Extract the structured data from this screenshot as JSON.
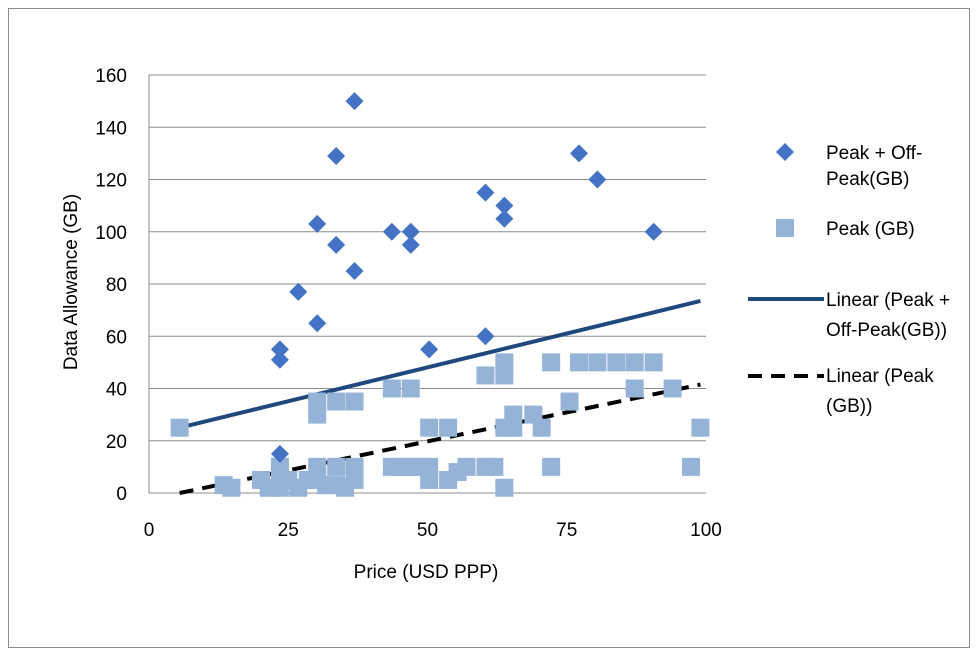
{
  "chart_data": {
    "type": "scatter",
    "title": "",
    "xlabel": "Price (USD PPP)",
    "ylabel": "Data Allowance (GB)",
    "xlim": [
      0,
      100
    ],
    "ylim": [
      0,
      160
    ],
    "x_ticks": [
      "0",
      "25",
      "50",
      "75",
      "100"
    ],
    "y_ticks": [
      "0",
      "20",
      "40",
      "60",
      "80",
      "100",
      "120",
      "140",
      "160"
    ],
    "grid": "horizontal",
    "legend_position": "right",
    "series": [
      {
        "name": "Peak + Off-Peak(GB)",
        "legend_lines": [
          "Peak + Off-",
          "Peak(GB)"
        ],
        "marker": "diamond",
        "color": "#4472C4",
        "points": [
          [
            23.5,
            55
          ],
          [
            23.5,
            51
          ],
          [
            23.5,
            15
          ],
          [
            26.8,
            77
          ],
          [
            30.2,
            103
          ],
          [
            30.2,
            65
          ],
          [
            33.6,
            129
          ],
          [
            33.6,
            95
          ],
          [
            36.9,
            150
          ],
          [
            36.9,
            85
          ],
          [
            43.6,
            100
          ],
          [
            47,
            100
          ],
          [
            47,
            95
          ],
          [
            50.3,
            55
          ],
          [
            60.4,
            115
          ],
          [
            60.4,
            60
          ],
          [
            63.8,
            110
          ],
          [
            63.8,
            105
          ],
          [
            77.2,
            130
          ],
          [
            80.5,
            120
          ],
          [
            90.6,
            100
          ]
        ]
      },
      {
        "name": "Peak (GB)",
        "marker": "square",
        "color": "#95B3D7",
        "points": [
          [
            5.5,
            25
          ],
          [
            13.4,
            3
          ],
          [
            14.8,
            2
          ],
          [
            20.1,
            5
          ],
          [
            21.5,
            2
          ],
          [
            23.5,
            10
          ],
          [
            23.5,
            7
          ],
          [
            23.5,
            2
          ],
          [
            25,
            5
          ],
          [
            26.8,
            2
          ],
          [
            28.5,
            5
          ],
          [
            30.2,
            35
          ],
          [
            30.2,
            30
          ],
          [
            30.2,
            10
          ],
          [
            30.2,
            5
          ],
          [
            31.8,
            3
          ],
          [
            33.6,
            35
          ],
          [
            33.6,
            10
          ],
          [
            33.6,
            3
          ],
          [
            35.2,
            2
          ],
          [
            36.9,
            35
          ],
          [
            36.9,
            10
          ],
          [
            36.9,
            5
          ],
          [
            43.6,
            40
          ],
          [
            43.6,
            10
          ],
          [
            45.3,
            10
          ],
          [
            47,
            40
          ],
          [
            47,
            10
          ],
          [
            48.7,
            10
          ],
          [
            50.3,
            25
          ],
          [
            50.3,
            10
          ],
          [
            50.3,
            5
          ],
          [
            53.7,
            25
          ],
          [
            53.7,
            5
          ],
          [
            55.4,
            8
          ],
          [
            57,
            10
          ],
          [
            60.4,
            45
          ],
          [
            60.4,
            10
          ],
          [
            62,
            10
          ],
          [
            63.8,
            50
          ],
          [
            63.8,
            45
          ],
          [
            63.8,
            25
          ],
          [
            63.8,
            2
          ],
          [
            65.4,
            30
          ],
          [
            65.4,
            25
          ],
          [
            69,
            30
          ],
          [
            70.5,
            25
          ],
          [
            72.2,
            50
          ],
          [
            72.2,
            10
          ],
          [
            75.5,
            35
          ],
          [
            77.2,
            50
          ],
          [
            80.5,
            50
          ],
          [
            83.9,
            50
          ],
          [
            87.2,
            50
          ],
          [
            87.2,
            40
          ],
          [
            90.6,
            50
          ],
          [
            94,
            40
          ],
          [
            97.3,
            10
          ],
          [
            99,
            25
          ]
        ]
      }
    ],
    "trendlines": [
      {
        "name": "Linear (Peak + Off-Peak(GB))",
        "legend_lines": [
          "Linear (Peak +",
          "Off-Peak(GB))"
        ],
        "style": "solid",
        "color": "#1F497D",
        "x": [
          5.5,
          99
        ],
        "y": [
          25,
          73.5
        ]
      },
      {
        "name": "Linear (Peak (GB))",
        "legend_lines": [
          "Linear (Peak",
          "(GB))"
        ],
        "style": "dashed",
        "color": "#000000",
        "x": [
          5.5,
          99
        ],
        "y": [
          0,
          41.5
        ]
      }
    ]
  }
}
